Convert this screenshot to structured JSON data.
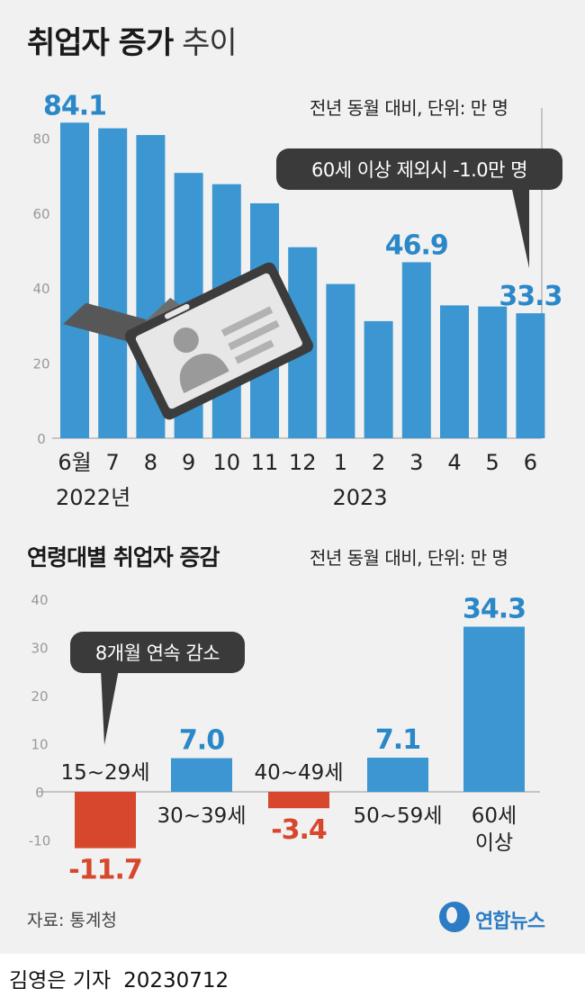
{
  "title": {
    "bold": "취업자 증가",
    "light": "추이"
  },
  "unit_note": "전년 동월 대비, 단위: 만 명",
  "colors": {
    "bar": "#3b96d1",
    "negative": "#d7472d",
    "label_blue": "#2b88c8",
    "axis": "#999999",
    "callout": "#3a3a3a"
  },
  "chart_data": [
    {
      "type": "bar",
      "title": "취업자 증가 추이",
      "categories": [
        "6월",
        "7",
        "8",
        "9",
        "10",
        "11",
        "12",
        "1",
        "2",
        "3",
        "4",
        "5",
        "6"
      ],
      "year_labels": [
        "2022년",
        "2023"
      ],
      "values": [
        84.1,
        82.6,
        80.8,
        70.7,
        67.7,
        62.6,
        50.9,
        41.1,
        31.2,
        46.9,
        35.4,
        35.1,
        33.3
      ],
      "highlighted": [
        {
          "index": 0,
          "label": "84.1"
        },
        {
          "index": 9,
          "label": "46.9"
        },
        {
          "index": 12,
          "label": "33.3"
        }
      ],
      "ylim": [
        0,
        84
      ],
      "yticks": [
        0,
        20,
        40,
        60,
        80
      ],
      "annotation": "60세 이상 제외시 -1.0만 명"
    },
    {
      "type": "bar",
      "title": "연령대별 취업자 증감",
      "categories": [
        "15~29세",
        "30~39세",
        "40~49세",
        "50~59세",
        "60세 이상"
      ],
      "values": [
        -11.7,
        7.0,
        -3.4,
        7.1,
        34.3
      ],
      "value_labels": [
        "-11.7",
        "7.0",
        "-3.4",
        "7.1",
        "34.3"
      ],
      "ylim": [
        -12,
        41
      ],
      "yticks": [
        -10,
        0,
        10,
        20,
        30,
        40
      ],
      "annotation": "8개월 연속 감소"
    }
  ],
  "chart2_title": "연령대별 취업자 증감",
  "source": "자료: 통계청",
  "logo_text": "연합뉴스",
  "credit": {
    "author": "김영은 기자",
    "date": "20230712"
  }
}
